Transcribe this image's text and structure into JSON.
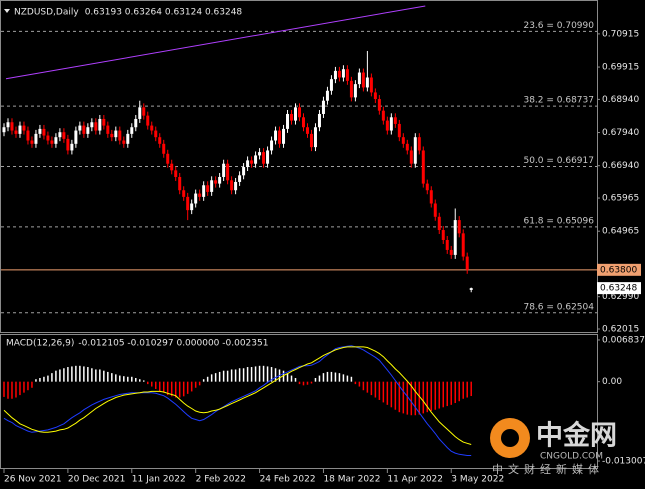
{
  "chart_data": [
    {
      "type": "candlestick",
      "title": "NZDUSD,Daily",
      "ohlc_header": "0.63193 0.63264 0.63124 0.63248",
      "up_color": "#ffffff",
      "down_color": "#ff0000",
      "xlim": [
        -0.75,
        148.5
      ],
      "ylim": [
        0.61925,
        0.71907
      ],
      "yticks": [
        {
          "value": 0.70915,
          "label": "0.70915"
        },
        {
          "value": 0.69915,
          "label": "0.69915"
        },
        {
          "value": 0.6894,
          "label": "0.68940"
        },
        {
          "value": 0.6794,
          "label": "0.67940"
        },
        {
          "value": 0.6694,
          "label": "0.66940"
        },
        {
          "value": 0.65965,
          "label": "0.65965"
        },
        {
          "value": 0.64965,
          "label": "0.64965"
        },
        {
          "value": 0.6299,
          "label": "0.62990"
        },
        {
          "value": 0.62015,
          "label": "0.62015"
        }
      ],
      "open": [
        0.6795,
        0.681,
        0.6825,
        0.68,
        0.679,
        0.6815,
        0.68,
        0.677,
        0.676,
        0.679,
        0.6805,
        0.6785,
        0.677,
        0.676,
        0.678,
        0.6795,
        0.6775,
        0.674,
        0.676,
        0.68,
        0.6815,
        0.679,
        0.681,
        0.6825,
        0.68,
        0.6835,
        0.6815,
        0.679,
        0.678,
        0.68,
        0.677,
        0.676,
        0.679,
        0.681,
        0.6835,
        0.687,
        0.6845,
        0.6815,
        0.68,
        0.678,
        0.676,
        0.673,
        0.67,
        0.668,
        0.666,
        0.662,
        0.66,
        0.656,
        0.658,
        0.661,
        0.66,
        0.6635,
        0.6615,
        0.665,
        0.664,
        0.666,
        0.67,
        0.665,
        0.662,
        0.6645,
        0.6665,
        0.669,
        0.671,
        0.67,
        0.6725,
        0.6735,
        0.67,
        0.674,
        0.677,
        0.68,
        0.676,
        0.6805,
        0.685,
        0.683,
        0.687,
        0.684,
        0.681,
        0.679,
        0.675,
        0.681,
        0.685,
        0.689,
        0.692,
        0.6955,
        0.698,
        0.696,
        0.6985,
        0.695,
        0.69,
        0.694,
        0.6975,
        0.693,
        0.696,
        0.6915,
        0.6895,
        0.686,
        0.683,
        0.68,
        0.684,
        0.682,
        0.678,
        0.676,
        0.674,
        0.67,
        0.678,
        0.674,
        0.664,
        0.662,
        0.658,
        0.654,
        0.65,
        0.647,
        0.644,
        0.6425,
        0.653,
        0.649,
        0.642,
        0.63193
      ],
      "high": [
        0.6822,
        0.6837,
        0.6837,
        0.6812,
        0.6827,
        0.6827,
        0.6812,
        0.6782,
        0.6802,
        0.6817,
        0.6817,
        0.6797,
        0.6782,
        0.6792,
        0.6807,
        0.6807,
        0.6787,
        0.6772,
        0.6812,
        0.6827,
        0.6827,
        0.6822,
        0.6837,
        0.6837,
        0.6847,
        0.6847,
        0.6827,
        0.6802,
        0.6812,
        0.6812,
        0.6782,
        0.6802,
        0.6822,
        0.6847,
        0.689,
        0.6882,
        0.6857,
        0.6827,
        0.6812,
        0.6792,
        0.6772,
        0.6742,
        0.6712,
        0.6692,
        0.6672,
        0.6632,
        0.6612,
        0.6592,
        0.6622,
        0.6622,
        0.6647,
        0.6647,
        0.6662,
        0.6662,
        0.6672,
        0.6712,
        0.6712,
        0.6662,
        0.6657,
        0.6677,
        0.6702,
        0.6722,
        0.6722,
        0.6737,
        0.6747,
        0.6747,
        0.6752,
        0.6782,
        0.6812,
        0.6812,
        0.6817,
        0.6862,
        0.6862,
        0.6882,
        0.6882,
        0.6852,
        0.6822,
        0.6802,
        0.6822,
        0.6862,
        0.6902,
        0.6932,
        0.6967,
        0.6992,
        0.6992,
        0.6997,
        0.6997,
        0.6962,
        0.6952,
        0.6987,
        0.6987,
        0.704,
        0.6972,
        0.6927,
        0.6907,
        0.6872,
        0.6842,
        0.6852,
        0.6852,
        0.6832,
        0.6792,
        0.6772,
        0.6752,
        0.6792,
        0.6792,
        0.6752,
        0.6652,
        0.6632,
        0.6592,
        0.6552,
        0.6512,
        0.6482,
        0.6452,
        0.6565,
        0.6542,
        0.6502,
        0.6432,
        0.63264
      ],
      "low": [
        0.6783,
        0.6798,
        0.6788,
        0.6778,
        0.6778,
        0.6788,
        0.6758,
        0.6748,
        0.6748,
        0.6778,
        0.6773,
        0.6758,
        0.6748,
        0.6748,
        0.6768,
        0.6763,
        0.6728,
        0.6728,
        0.6748,
        0.6788,
        0.6778,
        0.6778,
        0.6798,
        0.6788,
        0.6788,
        0.6803,
        0.6778,
        0.6768,
        0.6768,
        0.6758,
        0.6748,
        0.6748,
        0.6778,
        0.6798,
        0.6823,
        0.6833,
        0.6803,
        0.6788,
        0.6768,
        0.6748,
        0.6718,
        0.6688,
        0.6668,
        0.6648,
        0.6608,
        0.6588,
        0.653,
        0.6548,
        0.6568,
        0.6588,
        0.6588,
        0.6603,
        0.6603,
        0.6628,
        0.6628,
        0.6648,
        0.6638,
        0.6608,
        0.6608,
        0.6633,
        0.6653,
        0.6678,
        0.6688,
        0.6688,
        0.6713,
        0.6688,
        0.6688,
        0.6728,
        0.6758,
        0.6748,
        0.6748,
        0.6793,
        0.6818,
        0.6818,
        0.6828,
        0.6798,
        0.6778,
        0.6738,
        0.6738,
        0.6798,
        0.6838,
        0.6878,
        0.6908,
        0.6943,
        0.6948,
        0.6948,
        0.6938,
        0.6888,
        0.6888,
        0.6928,
        0.6918,
        0.6918,
        0.6903,
        0.6883,
        0.6848,
        0.6818,
        0.6788,
        0.6788,
        0.6808,
        0.6768,
        0.6748,
        0.6728,
        0.6688,
        0.6688,
        0.6728,
        0.6628,
        0.6608,
        0.6568,
        0.6528,
        0.6488,
        0.6458,
        0.6428,
        0.6413,
        0.6413,
        0.6478,
        0.6408,
        0.6368,
        0.63124
      ],
      "close": [
        0.681,
        0.6825,
        0.68,
        0.679,
        0.6815,
        0.68,
        0.677,
        0.676,
        0.679,
        0.6805,
        0.6785,
        0.677,
        0.676,
        0.678,
        0.6795,
        0.6775,
        0.674,
        0.676,
        0.68,
        0.6815,
        0.679,
        0.681,
        0.6825,
        0.68,
        0.6835,
        0.6815,
        0.679,
        0.678,
        0.68,
        0.677,
        0.676,
        0.679,
        0.681,
        0.6835,
        0.687,
        0.6845,
        0.6815,
        0.68,
        0.678,
        0.676,
        0.673,
        0.67,
        0.668,
        0.666,
        0.662,
        0.66,
        0.656,
        0.658,
        0.661,
        0.66,
        0.6635,
        0.6615,
        0.665,
        0.664,
        0.666,
        0.67,
        0.665,
        0.662,
        0.6645,
        0.6665,
        0.669,
        0.671,
        0.67,
        0.6725,
        0.6735,
        0.67,
        0.674,
        0.677,
        0.68,
        0.676,
        0.6805,
        0.685,
        0.683,
        0.687,
        0.684,
        0.681,
        0.679,
        0.675,
        0.681,
        0.685,
        0.689,
        0.692,
        0.6955,
        0.698,
        0.696,
        0.6985,
        0.695,
        0.69,
        0.694,
        0.6975,
        0.693,
        0.696,
        0.6915,
        0.6895,
        0.686,
        0.683,
        0.68,
        0.684,
        0.682,
        0.678,
        0.676,
        0.674,
        0.67,
        0.678,
        0.674,
        0.664,
        0.662,
        0.658,
        0.654,
        0.65,
        0.647,
        0.644,
        0.6425,
        0.653,
        0.649,
        0.642,
        0.638,
        0.63248
      ],
      "levels": [
        {
          "value": 0.7099,
          "label": "23.6 = 0.70990"
        },
        {
          "value": 0.68737,
          "label": "38.2 = 0.68737"
        },
        {
          "value": 0.66917,
          "label": "50.0 = 0.66917"
        },
        {
          "value": 0.65096,
          "label": "61.8 = 0.65096"
        },
        {
          "value": 0.62504,
          "label": "78.6 = 0.62504"
        }
      ],
      "level_color": "#a0a0a0",
      "hline": {
        "value": 0.638,
        "label": "0.63800",
        "color": "#f0a070"
      },
      "last_price": {
        "value": 0.63248,
        "label": "0.63248"
      },
      "trendline": {
        "x": [
          0.5,
          105.5
        ],
        "values": [
          0.69562,
          0.71757
        ],
        "color": "#b040ff"
      }
    },
    {
      "type": "macd",
      "title": "MACD(12,26,9)",
      "header_values": "-0.012105 -0.010297 0.000000 -0.002351",
      "xlim": [
        -0.75,
        148.5
      ],
      "ylim": [
        -0.01415,
        0.00765
      ],
      "yticks": [
        0.006837,
        {
          "value": 0,
          "label": "0.00"
        },
        -0.013007
      ],
      "xticks": [
        {
          "value": 0,
          "label": "26 Nov 2021"
        },
        {
          "value": 16,
          "label": "20 Dec 2021"
        },
        {
          "value": 32,
          "label": "11 Jan 2022"
        },
        {
          "value": 48,
          "label": "2 Feb 2022"
        },
        {
          "value": 64,
          "label": "24 Feb 2022"
        },
        {
          "value": 80,
          "label": "18 Mar 2022"
        },
        {
          "value": 96,
          "label": "11 Apr 2022"
        },
        {
          "value": 112,
          "label": "3 May 2022"
        }
      ],
      "hist_pos_color": "#ffffff",
      "hist_neg_color": "#ff0000",
      "histogram": [
        -0.0025,
        -0.0028,
        -0.0028,
        -0.0026,
        -0.0022,
        -0.0018,
        -0.0014,
        -0.001,
        0.0004,
        0.0006,
        0.0008,
        0.001,
        0.0014,
        0.0018,
        0.002,
        0.0022,
        0.0024,
        0.0025,
        0.0026,
        0.0026,
        0.0025,
        0.0024,
        0.0022,
        0.002,
        0.002,
        0.0018,
        0.0016,
        0.0014,
        0.0012,
        0.001,
        0.0009,
        0.0008,
        0.0008,
        0.0006,
        0.0004,
        0.0002,
        -0.0004,
        -0.0008,
        -0.0012,
        -0.0016,
        -0.0018,
        -0.0022,
        -0.0024,
        -0.0026,
        -0.0026,
        -0.0024,
        -0.002,
        -0.0016,
        -0.001,
        -0.0006,
        0.0004,
        0.0008,
        0.0012,
        0.0014,
        0.0016,
        0.0018,
        0.0018,
        0.002,
        0.002,
        0.0022,
        0.0022,
        0.0024,
        0.0024,
        0.0025,
        0.0026,
        0.0026,
        0.0025,
        0.0024,
        0.0022,
        0.002,
        0.0018,
        0.0014,
        0.001,
        0.0006,
        -0.0004,
        -0.0006,
        -0.0005,
        -0.0003,
        0.0006,
        0.001,
        0.0014,
        0.0016,
        0.0016,
        0.0015,
        0.0014,
        0.0012,
        0.001,
        0.0008,
        -0.0004,
        -0.0008,
        -0.0014,
        -0.0018,
        -0.0022,
        -0.0026,
        -0.003,
        -0.0034,
        -0.0038,
        -0.0042,
        -0.0046,
        -0.005,
        -0.0052,
        -0.0054,
        -0.0055,
        -0.0055,
        -0.0054,
        -0.0052,
        -0.005,
        -0.0048,
        -0.0046,
        -0.0044,
        -0.0042,
        -0.004,
        -0.0038,
        -0.0035,
        -0.0032,
        -0.0028,
        -0.0026,
        -0.002351
      ],
      "series": [
        {
          "color": "#1e3cff",
          "values": [
            -0.006,
            -0.0064,
            -0.0067,
            -0.0072,
            -0.0075,
            -0.0078,
            -0.0081,
            -0.0083,
            -0.0082,
            -0.0081,
            -0.008,
            -0.0079,
            -0.0077,
            -0.0075,
            -0.0072,
            -0.0069,
            -0.0064,
            -0.0059,
            -0.0055,
            -0.0051,
            -0.0046,
            -0.0042,
            -0.0038,
            -0.0035,
            -0.0032,
            -0.0029,
            -0.0027,
            -0.0025,
            -0.0023,
            -0.0021,
            -0.002,
            -0.0019,
            -0.0018,
            -0.0018,
            -0.0018,
            -0.0018,
            -0.0018,
            -0.0018,
            -0.0019,
            -0.0021,
            -0.0023,
            -0.0027,
            -0.0032,
            -0.0037,
            -0.0043,
            -0.0049,
            -0.0055,
            -0.006,
            -0.0062,
            -0.0064,
            -0.0062,
            -0.0058,
            -0.0054,
            -0.0049,
            -0.0045,
            -0.0041,
            -0.0037,
            -0.0033,
            -0.003,
            -0.0027,
            -0.0024,
            -0.0021,
            -0.0018,
            -0.0015,
            -0.001,
            -0.0006,
            -0.0001,
            0.0003,
            0.0007,
            0.001,
            0.0013,
            0.0016,
            0.0019,
            0.0022,
            0.0025,
            0.0026,
            0.0026,
            0.0027,
            0.003,
            0.0033,
            0.0039,
            0.0044,
            0.0049,
            0.0054,
            0.0056,
            0.0057,
            0.0058,
            0.0059,
            0.0057,
            0.0055,
            0.0052,
            0.0048,
            0.0044,
            0.004,
            0.0035,
            0.0027,
            0.0019,
            0.0011,
            0.0002,
            -0.0007,
            -0.0016,
            -0.0024,
            -0.0033,
            -0.0042,
            -0.0051,
            -0.006,
            -0.0069,
            -0.0077,
            -0.0085,
            -0.0094,
            -0.0101,
            -0.0108,
            -0.0114,
            -0.0117,
            -0.0119,
            -0.012,
            -0.0121,
            -0.012105
          ]
        },
        {
          "color": "#ffff00",
          "values": [
            -0.0047,
            -0.0053,
            -0.0059,
            -0.0064,
            -0.0069,
            -0.0072,
            -0.0075,
            -0.0078,
            -0.008,
            -0.0082,
            -0.0083,
            -0.0083,
            -0.0082,
            -0.0081,
            -0.0079,
            -0.0078,
            -0.0076,
            -0.0072,
            -0.0068,
            -0.0063,
            -0.0059,
            -0.0054,
            -0.0049,
            -0.0044,
            -0.004,
            -0.0036,
            -0.0032,
            -0.0029,
            -0.0026,
            -0.0024,
            -0.0022,
            -0.0021,
            -0.002,
            -0.0019,
            -0.0018,
            -0.0017,
            -0.0017,
            -0.0016,
            -0.0016,
            -0.0016,
            -0.0017,
            -0.0019,
            -0.0021,
            -0.0023,
            -0.0029,
            -0.0035,
            -0.004,
            -0.0044,
            -0.0048,
            -0.005,
            -0.0051,
            -0.005,
            -0.0048,
            -0.0047,
            -0.0045,
            -0.0042,
            -0.0039,
            -0.0036,
            -0.0033,
            -0.003,
            -0.0027,
            -0.0024,
            -0.0021,
            -0.0018,
            -0.0014,
            -0.001,
            -0.0006,
            -0.0002,
            0.0002,
            0.0006,
            0.001,
            0.0013,
            0.0017,
            0.002,
            0.0023,
            0.0026,
            0.0029,
            0.0031,
            0.0035,
            0.0039,
            0.0043,
            0.0046,
            0.0049,
            0.0052,
            0.0054,
            0.0056,
            0.0057,
            0.0057,
            0.0057,
            0.0057,
            0.0057,
            0.0056,
            0.0053,
            0.005,
            0.0046,
            0.0041,
            0.0034,
            0.0028,
            0.0021,
            0.0015,
            0.0008,
            0.0001,
            -0.0007,
            -0.0016,
            -0.0024,
            -0.0032,
            -0.0041,
            -0.005,
            -0.0058,
            -0.0066,
            -0.0072,
            -0.0078,
            -0.0084,
            -0.009,
            -0.0095,
            -0.0099,
            -0.0101,
            -0.010297
          ]
        }
      ]
    }
  ],
  "watermark": {
    "brand": "中金网",
    "site": "CNGOLD.COM",
    "tagline": "中文财经新媒体"
  }
}
